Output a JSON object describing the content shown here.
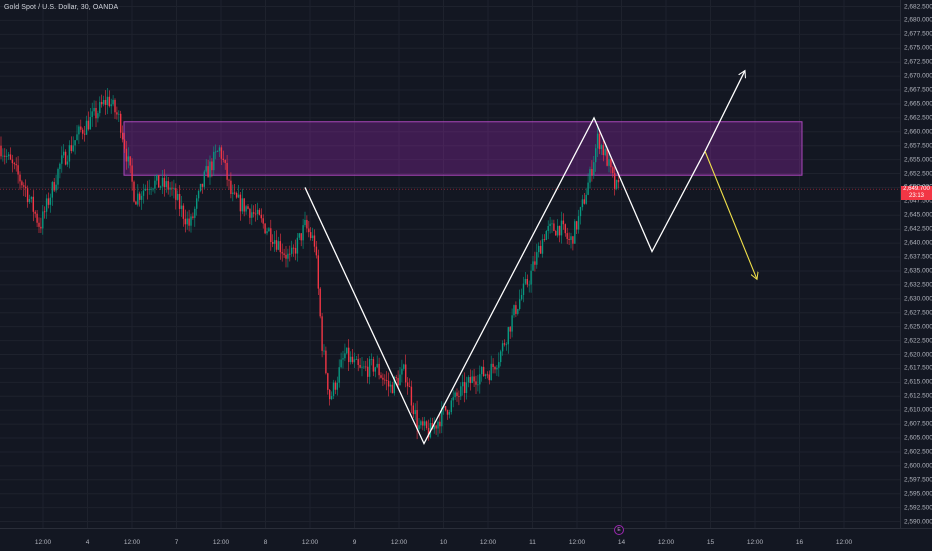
{
  "header": {
    "symbol_title": "Gold Spot / U.S. Dollar, 30, OANDA"
  },
  "price_axis": {
    "ticks": [
      "2,682.500",
      "2,680.000",
      "2,677.500",
      "2,675.000",
      "2,672.500",
      "2,670.000",
      "2,667.500",
      "2,665.000",
      "2,662.500",
      "2,660.000",
      "2,657.500",
      "2,655.000",
      "2,652.500",
      "2,650.000",
      "2,647.500",
      "2,645.000",
      "2,642.500",
      "2,640.000",
      "2,637.500",
      "2,635.000",
      "2,632.500",
      "2,630.000",
      "2,627.500",
      "2,625.000",
      "2,622.500",
      "2,620.000",
      "2,617.500",
      "2,615.000",
      "2,612.500",
      "2,610.000",
      "2,607.500",
      "2,605.000",
      "2,602.500",
      "2,600.000",
      "2,597.500",
      "2,595.000",
      "2,592.500",
      "2,590.000"
    ],
    "current_price": "2,649.700",
    "countdown": "23:13"
  },
  "time_axis": {
    "labels": [
      "12:00",
      "4",
      "12:00",
      "7",
      "12:00",
      "8",
      "12:00",
      "9",
      "12:00",
      "10",
      "12:00",
      "11",
      "12:00",
      "14",
      "12:00",
      "15",
      "12:00",
      "16",
      "12:00"
    ]
  },
  "event_marker": {
    "label": "E"
  },
  "colors": {
    "background": "#131722",
    "up": "#089981",
    "down": "#f23645",
    "zone_fill": "#9c27b0",
    "projection_up": "#ffffff",
    "projection_down": "#f0e04a"
  },
  "chart_data": {
    "type": "candlestick",
    "symbol": "Gold Spot / U.S. Dollar",
    "timeframe": "30",
    "source": "OANDA",
    "ylim": [
      2590,
      2682.5
    ],
    "current_price": 2649.7,
    "zone": {
      "top": 2661.8,
      "bottom": 2652.2
    },
    "price_path": [
      [
        0,
        2657.5
      ],
      [
        25,
        2650
      ],
      [
        40,
        2643
      ],
      [
        60,
        2654
      ],
      [
        80,
        2660
      ],
      [
        95,
        2663
      ],
      [
        108,
        2666
      ],
      [
        120,
        2662
      ],
      [
        135,
        2648
      ],
      [
        150,
        2651
      ],
      [
        170,
        2650
      ],
      [
        190,
        2643
      ],
      [
        205,
        2652
      ],
      [
        220,
        2657
      ],
      [
        232,
        2648
      ],
      [
        250,
        2646
      ],
      [
        270,
        2642
      ],
      [
        290,
        2637
      ],
      [
        305,
        2643
      ],
      [
        315,
        2640
      ],
      [
        322,
        2622
      ],
      [
        330,
        2612
      ],
      [
        345,
        2620
      ],
      [
        360,
        2617
      ],
      [
        375,
        2618
      ],
      [
        390,
        2614
      ],
      [
        405,
        2617
      ],
      [
        418,
        2607
      ],
      [
        430,
        2606
      ],
      [
        445,
        2610
      ],
      [
        460,
        2613
      ],
      [
        475,
        2616
      ],
      [
        490,
        2617
      ],
      [
        500,
        2620
      ],
      [
        515,
        2628
      ],
      [
        530,
        2634
      ],
      [
        545,
        2642
      ],
      [
        560,
        2643
      ],
      [
        570,
        2640
      ],
      [
        580,
        2645
      ],
      [
        590,
        2652
      ],
      [
        598,
        2659
      ],
      [
        607,
        2655
      ],
      [
        615,
        2650
      ],
      [
        620,
        2649.7
      ]
    ],
    "projection_path": [
      {
        "t": 305,
        "price": 2650.0
      },
      {
        "t": 424,
        "price": 2604.0
      },
      {
        "t": 594,
        "price": 2662.5
      },
      {
        "t": 652,
        "price": 2638.5
      },
      {
        "t": 705,
        "price": 2656.5
      },
      {
        "t": 745,
        "price": 2671.0
      }
    ],
    "projection_alt": [
      {
        "t": 705,
        "price": 2656.5
      },
      {
        "t": 757,
        "price": 2633.5
      }
    ]
  }
}
